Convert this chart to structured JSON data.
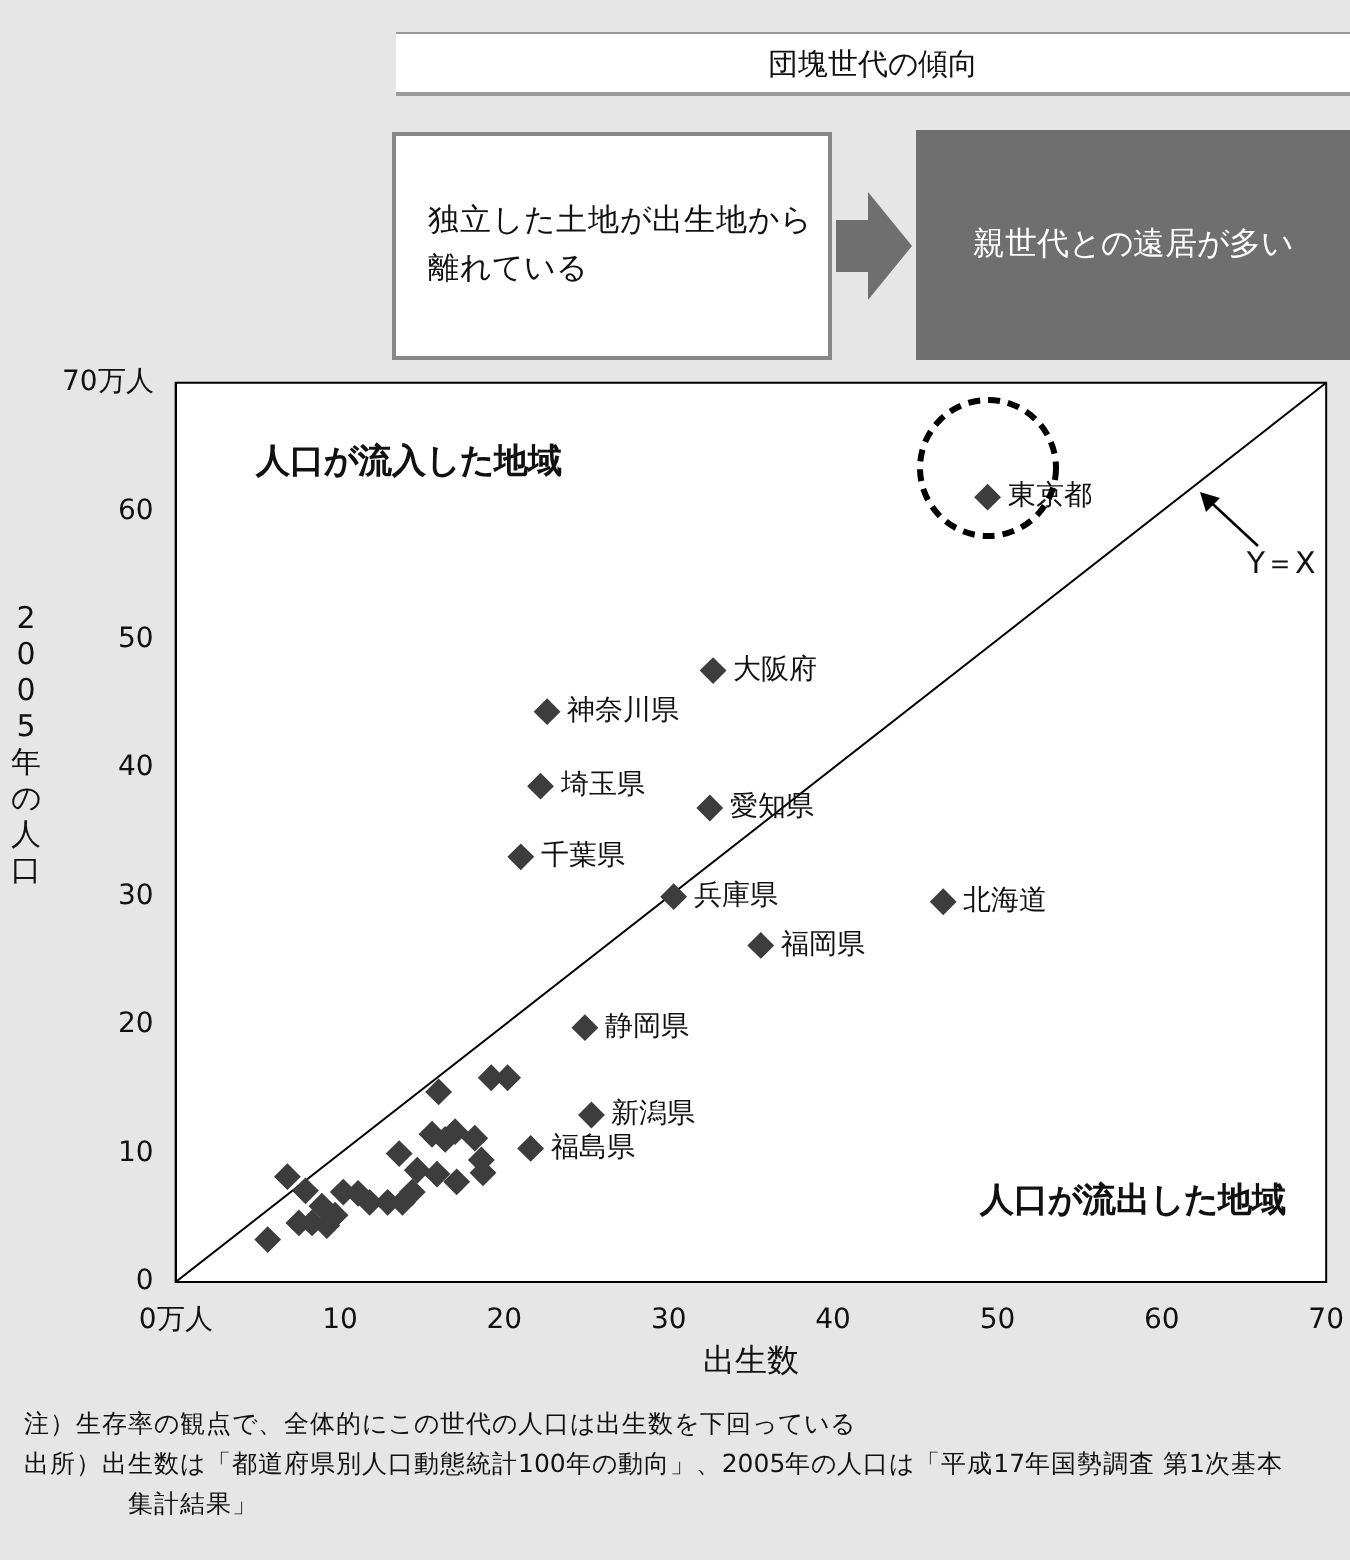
{
  "chart_data": {
    "type": "scatter",
    "title": "団塊世代の傾向",
    "xlabel": "出生数",
    "ylabel": "2005年の人口",
    "marker": "diamond",
    "grid": false,
    "legend": false,
    "xlim": [
      0,
      70
    ],
    "ylim": [
      0,
      70
    ],
    "xticks": [
      {
        "value": 0,
        "label": "0万人"
      },
      10,
      20,
      30,
      40,
      50,
      60,
      70
    ],
    "yticks": [
      0,
      10,
      20,
      30,
      40,
      50,
      60,
      {
        "value": 70,
        "label": "70万人"
      }
    ],
    "series": [
      {
        "type": "scatter",
        "color": "#3d3d3d",
        "x": [
          49.4,
          32.7,
          22.6,
          32.5,
          22.2,
          21.0,
          30.3,
          46.7,
          35.6,
          24.9,
          25.3,
          21.6,
          19.2,
          20.2,
          16.0,
          5.6,
          6.8,
          7.9,
          7.5,
          8.3,
          8.9,
          9.2,
          9.7,
          10.2,
          11.1,
          11.8,
          12.9,
          13.8,
          14.4,
          14.7,
          13.6,
          15.9,
          15.6,
          16.4,
          17.0,
          18.2,
          17.1,
          18.6,
          18.7
        ],
        "values": [
          61.1,
          47.6,
          44.4,
          36.9,
          38.6,
          33.1,
          30.0,
          29.6,
          26.2,
          19.8,
          13.0,
          10.4,
          15.9,
          15.9,
          14.8,
          3.3,
          8.2,
          7.1,
          4.6,
          4.6,
          5.9,
          4.4,
          5.2,
          7.0,
          6.9,
          6.2,
          6.2,
          6.2,
          7.0,
          8.7,
          10.0,
          8.4,
          11.5,
          11.1,
          11.7,
          11.2,
          7.8,
          9.5,
          8.5
        ]
      },
      {
        "type": "line",
        "color": "#000000",
        "marker": "none",
        "x": [
          0,
          70
        ],
        "values": [
          0,
          70
        ]
      }
    ],
    "annotations": [
      "独立した土地が出生地から離れている",
      "親世代との遠居が多い",
      "人口が流入した地域",
      "人口が流出した地域",
      {
        "text": "東京都",
        "x": 49.4,
        "y": 61.1
      },
      {
        "text": "大阪府",
        "x": 32.7,
        "y": 47.6
      },
      {
        "text": "神奈川県",
        "x": 22.6,
        "y": 44.4
      },
      {
        "text": "愛知県",
        "x": 32.5,
        "y": 36.9
      },
      {
        "text": "埼玉県",
        "x": 22.2,
        "y": 38.6
      },
      {
        "text": "千葉県",
        "x": 21.0,
        "y": 33.1
      },
      {
        "text": "兵庫県",
        "x": 30.3,
        "y": 30.0
      },
      {
        "text": "北海道",
        "x": 46.7,
        "y": 29.6
      },
      {
        "text": "福岡県",
        "x": 35.6,
        "y": 26.2
      },
      {
        "text": "静岡県",
        "x": 24.9,
        "y": 19.8
      },
      {
        "text": "新潟県",
        "x": 25.3,
        "y": 13.0
      },
      {
        "text": "福島県",
        "x": 21.6,
        "y": 10.4
      },
      {
        "text": "Y＝X",
        "x": 62,
        "y": 62
      },
      "注）生存率の観点で、全体的にこの世代の人口は出生数を下回っている",
      "出所）出生数は「都道府県別人口動態統計100年の動向」、2005年の人口は「平成17年国勢調査 第1次基本集計結果」"
    ]
  }
}
